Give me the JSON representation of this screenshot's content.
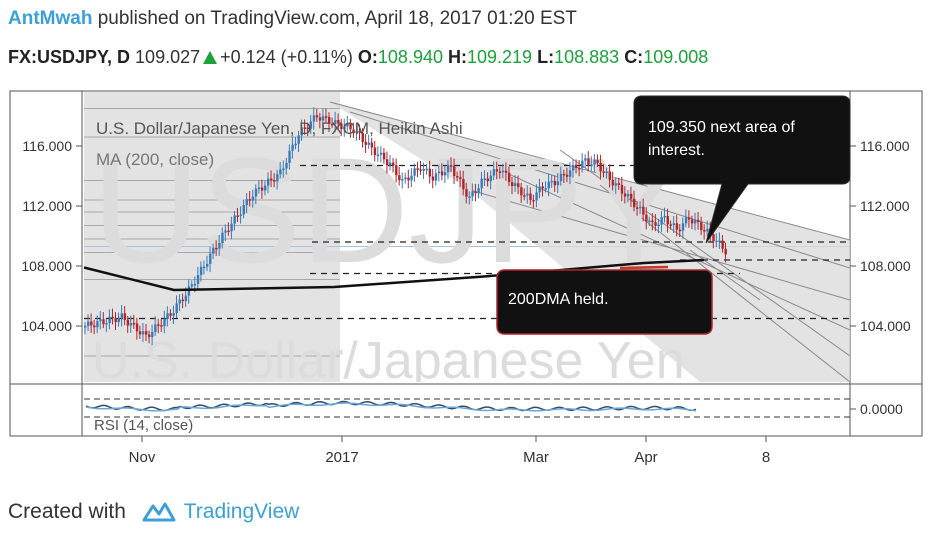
{
  "header": {
    "author": "AntMwah",
    "published_text": "published on TradingView.com, April 18, 2017 01:20 EST",
    "symbol": "FX:USDJPY, D",
    "last": "109.027",
    "change": "+0.124 (+0.11%)",
    "o_label": "O:",
    "o_value": "108.940",
    "h_label": "H:",
    "h_value": "109.219",
    "l_label": "L:",
    "l_value": "108.883",
    "c_label": "C:",
    "c_value": "109.008"
  },
  "chart_data": {
    "type": "candlestick",
    "title": "U.S. Dollar/Japanese Yen, D, FXCM, Heikin Ashi",
    "indicator_label": "MA (200, close)",
    "watermark_symbol": "USDJPY",
    "watermark_name": "U.S. Dollar/Japanese Yen",
    "y_ticks": [
      "116.000",
      "112.000",
      "108.000",
      "104.000"
    ],
    "ylim": [
      101.5,
      118.5
    ],
    "x_ticks": [
      "Nov",
      "2017",
      "Mar",
      "Apr",
      "8"
    ],
    "rsi_label": "RSI (14, close)",
    "rsi_tick": "0.0000",
    "annotations": [
      {
        "text_line1": "109.350 next area of",
        "text_line2": "interest."
      },
      {
        "text_line1": "200DMA held.",
        "text_line2": ""
      }
    ],
    "horizontal_levels": [
      114.7,
      109.6,
      108.4,
      107.5,
      104.5
    ],
    "ma200_approx": [
      [
        0,
        107.9
      ],
      [
        90,
        106.4
      ],
      [
        250,
        106.6
      ],
      [
        400,
        107.3
      ],
      [
        560,
        108.2
      ],
      [
        620,
        108.4
      ]
    ],
    "colors": {
      "up": "#3a7ab8",
      "down": "#b0242a",
      "ma": "#111111",
      "channel": "#d6d6d6"
    }
  },
  "footer": {
    "created_with": "Created with",
    "brand": "TradingView"
  }
}
